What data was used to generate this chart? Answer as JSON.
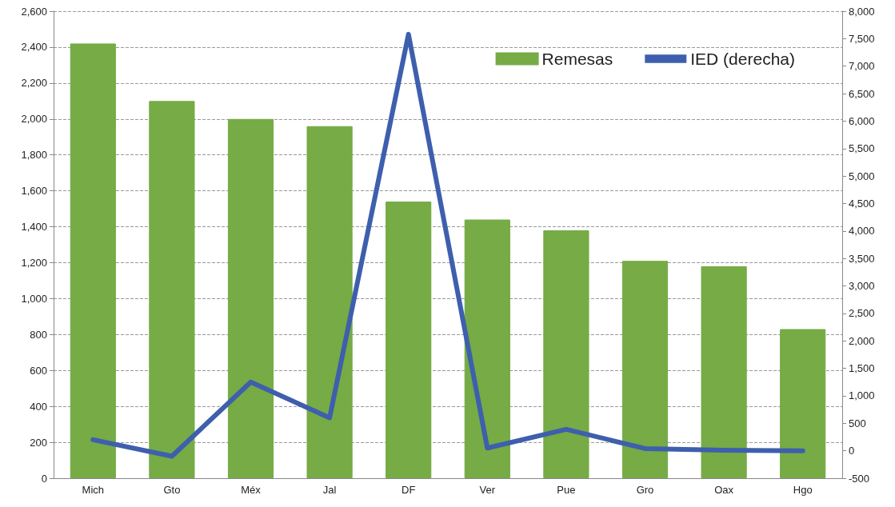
{
  "chart_data": {
    "type": "bar",
    "categories": [
      "Mich",
      "Gto",
      "Méx",
      "Jal",
      "DF",
      "Ver",
      "Pue",
      "Gro",
      "Oax",
      "Hgo"
    ],
    "series": [
      {
        "name": "Remesas",
        "color": "#76ab45",
        "values": [
          2420,
          2100,
          2000,
          1960,
          1540,
          1440,
          1380,
          1210,
          1180,
          830
        ]
      },
      {
        "name": "IED (derecha)",
        "type": "line",
        "axis": "y2",
        "color": "#3e5fad",
        "values": [
          200,
          -100,
          1250,
          600,
          7580,
          50,
          390,
          40,
          10,
          0
        ]
      }
    ],
    "ylim": [
      0,
      2600
    ],
    "yticks": [
      0,
      200,
      400,
      600,
      800,
      {
        "value": 1000,
        "label": "1,000"
      },
      {
        "value": 1200,
        "label": "1,200"
      },
      {
        "value": 1400,
        "label": "1,400"
      },
      {
        "value": 1600,
        "label": "1,600"
      },
      {
        "value": 1800,
        "label": "1,800"
      },
      {
        "value": 2000,
        "label": "2,000"
      },
      {
        "value": 2200,
        "label": "2,200"
      },
      {
        "value": 2400,
        "label": "2,400"
      },
      {
        "value": 2600,
        "label": "2,600"
      }
    ],
    "y2lim": [
      -500,
      8000
    ],
    "y2ticks": [
      -500,
      0,
      500,
      {
        "value": 1000,
        "label": "1,000"
      },
      {
        "value": 1500,
        "label": "1,500"
      },
      {
        "value": 2000,
        "label": "2,000"
      },
      {
        "value": 2500,
        "label": "2,500"
      },
      {
        "value": 3000,
        "label": "3,000"
      },
      {
        "value": 3500,
        "label": "3,500"
      },
      {
        "value": 4000,
        "label": "4,000"
      },
      {
        "value": 4500,
        "label": "4,500"
      },
      {
        "value": 5000,
        "label": "5,000"
      },
      {
        "value": 5500,
        "label": "5,500"
      },
      {
        "value": 6000,
        "label": "6,000"
      },
      {
        "value": 6500,
        "label": "6,500"
      },
      {
        "value": 7000,
        "label": "7,000"
      },
      {
        "value": 7500,
        "label": "7,500"
      },
      {
        "value": 8000,
        "label": "8,000"
      }
    ],
    "grid": "y",
    "legend": "top right",
    "marker": "none",
    "line_style": "solid"
  }
}
